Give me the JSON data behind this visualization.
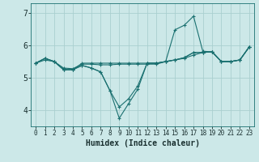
{
  "xlabel": "Humidex (Indice chaleur)",
  "bg_color": "#cce8e8",
  "grid_color": "#aacfcf",
  "line_color": "#1a7070",
  "xlim": [
    -0.5,
    23.5
  ],
  "ylim": [
    3.5,
    7.3
  ],
  "yticks": [
    4,
    5,
    6,
    7
  ],
  "xticks": [
    0,
    1,
    2,
    3,
    4,
    5,
    6,
    7,
    8,
    9,
    10,
    11,
    12,
    13,
    14,
    15,
    16,
    17,
    18,
    19,
    20,
    21,
    22,
    23
  ],
  "series": [
    {
      "x": [
        0,
        1,
        2,
        3,
        4,
        5,
        6,
        7,
        8,
        9,
        10,
        11,
        12,
        13,
        14,
        15,
        16,
        17,
        18,
        19,
        20,
        21,
        22,
        23
      ],
      "y": [
        5.45,
        5.6,
        5.5,
        5.25,
        5.25,
        5.45,
        5.45,
        5.45,
        5.45,
        5.45,
        5.45,
        5.45,
        5.45,
        5.45,
        5.5,
        5.55,
        5.6,
        5.7,
        5.78,
        5.8,
        5.5,
        5.5,
        5.55,
        5.95
      ]
    },
    {
      "x": [
        0,
        1,
        2,
        3,
        4,
        5,
        6,
        7,
        8,
        9,
        10,
        11,
        12,
        13,
        14,
        15,
        16,
        17,
        18,
        19,
        20,
        21,
        22,
        23
      ],
      "y": [
        5.45,
        5.55,
        5.5,
        5.3,
        5.28,
        5.42,
        5.42,
        5.4,
        5.4,
        5.42,
        5.42,
        5.42,
        5.42,
        5.42,
        5.5,
        5.55,
        5.62,
        5.78,
        5.78,
        5.8,
        5.5,
        5.5,
        5.55,
        5.95
      ]
    },
    {
      "x": [
        0,
        1,
        2,
        3,
        4,
        5,
        6,
        7,
        8,
        9,
        10,
        11,
        12,
        13,
        14,
        15,
        16,
        17,
        18,
        19,
        20,
        21,
        22,
        23
      ],
      "y": [
        5.45,
        5.6,
        5.5,
        5.25,
        5.25,
        5.38,
        5.3,
        5.18,
        4.6,
        4.1,
        4.35,
        4.75,
        5.45,
        5.45,
        5.5,
        5.55,
        5.62,
        5.78,
        5.78,
        5.8,
        5.5,
        5.5,
        5.55,
        5.95
      ]
    },
    {
      "x": [
        0,
        1,
        2,
        3,
        4,
        5,
        6,
        7,
        8,
        9,
        10,
        11,
        12,
        13,
        14,
        15,
        16,
        17,
        18,
        19,
        20,
        21,
        22,
        23
      ],
      "y": [
        5.45,
        5.6,
        5.5,
        5.25,
        5.25,
        5.38,
        5.3,
        5.18,
        4.6,
        3.75,
        4.2,
        4.65,
        5.45,
        5.45,
        5.5,
        6.48,
        6.62,
        6.9,
        5.82,
        5.8,
        5.5,
        5.5,
        5.55,
        5.95
      ]
    }
  ]
}
